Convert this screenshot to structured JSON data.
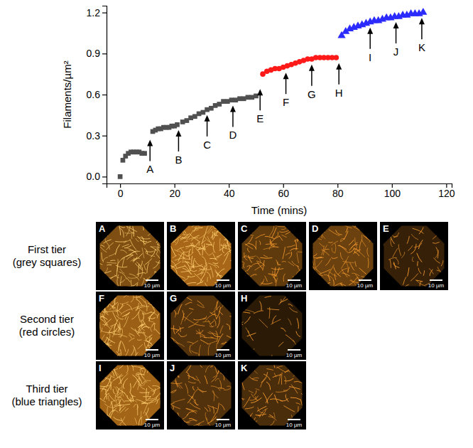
{
  "chart_data": {
    "type": "scatter",
    "xlabel": "Time (mins)",
    "ylabel": "Filaments/µm²",
    "xlim": [
      -5,
      122
    ],
    "ylim": [
      -0.05,
      1.25
    ],
    "xticks": [
      0,
      20,
      40,
      60,
      80,
      100,
      120
    ],
    "yticks": [
      {
        "value": 0,
        "label": "0.0"
      },
      0.3,
      0.6,
      0.9,
      1.2
    ],
    "grid": false,
    "series": [
      {
        "color": "#505050",
        "marker": "square",
        "x": [
          0,
          1,
          2,
          3,
          4,
          5,
          6,
          7,
          8,
          9,
          12,
          13,
          14,
          15,
          16,
          17,
          18,
          19,
          20,
          21,
          23,
          24.5,
          26,
          27.5,
          29,
          30.5,
          32,
          33.5,
          35,
          36.5,
          38,
          39.5,
          41,
          42.5,
          44,
          45.5,
          47,
          48.5,
          50
        ],
        "values": [
          0,
          0.12,
          0.15,
          0.17,
          0.18,
          0.18,
          0.18,
          0.18,
          0.17,
          0.17,
          0.33,
          0.34,
          0.35,
          0.35,
          0.36,
          0.36,
          0.36,
          0.37,
          0.37,
          0.38,
          0.4,
          0.41,
          0.43,
          0.44,
          0.46,
          0.47,
          0.49,
          0.5,
          0.52,
          0.53,
          0.55,
          0.55,
          0.56,
          0.56,
          0.57,
          0.57,
          0.58,
          0.58,
          0.59
        ]
      },
      {
        "color": "#ff1a1a",
        "marker": "circle",
        "x": [
          52.5,
          54,
          55.5,
          57,
          58.5,
          60,
          61.5,
          63,
          64.5,
          66,
          67.5,
          69,
          70.5,
          72,
          73.5,
          75,
          76.5,
          78,
          79.5
        ],
        "values": [
          0.75,
          0.77,
          0.78,
          0.79,
          0.79,
          0.8,
          0.81,
          0.82,
          0.83,
          0.84,
          0.85,
          0.86,
          0.86,
          0.87,
          0.87,
          0.87,
          0.87,
          0.87,
          0.87
        ]
      },
      {
        "color": "#2b2bff",
        "marker": "triangle",
        "x": [
          81.5,
          83,
          84.5,
          86,
          87.5,
          89,
          90.5,
          92,
          93.5,
          95,
          96.5,
          98,
          99.5,
          101,
          102.5,
          104,
          105.5,
          107,
          108.5,
          110,
          111.5
        ],
        "values": [
          1.03,
          1.06,
          1.08,
          1.09,
          1.1,
          1.11,
          1.12,
          1.13,
          1.14,
          1.14,
          1.15,
          1.16,
          1.16,
          1.17,
          1.17,
          1.18,
          1.18,
          1.19,
          1.19,
          1.19,
          1.2
        ]
      }
    ],
    "annotations": [
      {
        "text": "A",
        "x": 11,
        "y": 0.27
      },
      {
        "text": "B",
        "x": 21.5,
        "y": 0.34
      },
      {
        "text": "C",
        "x": 32,
        "y": 0.45
      },
      {
        "text": "D",
        "x": 41.5,
        "y": 0.52
      },
      {
        "text": "E",
        "x": 51.5,
        "y": 0.64
      },
      {
        "text": "F",
        "x": 61,
        "y": 0.76
      },
      {
        "text": "G",
        "x": 70.5,
        "y": 0.82
      },
      {
        "text": "H",
        "x": 80.5,
        "y": 0.83
      },
      {
        "text": "I",
        "x": 92,
        "y": 1.09
      },
      {
        "text": "J",
        "x": 101.5,
        "y": 1.13
      },
      {
        "text": "K",
        "x": 111,
        "y": 1.16
      }
    ]
  },
  "image_panels": {
    "rows": [
      {
        "title": "First tier (grey squares)",
        "panels": [
          {
            "label": "A",
            "scale_bar": "10 µm"
          },
          {
            "label": "B",
            "scale_bar": "10 µm"
          },
          {
            "label": "C",
            "scale_bar": "10 µm"
          },
          {
            "label": "D",
            "scale_bar": "10 µm"
          },
          {
            "label": "E",
            "scale_bar": "10 µm"
          }
        ]
      },
      {
        "title": "Second tier (red circles)",
        "panels": [
          {
            "label": "F",
            "scale_bar": "10 µm"
          },
          {
            "label": "G",
            "scale_bar": "10 µm"
          },
          {
            "label": "H",
            "scale_bar": "10 µm"
          }
        ]
      },
      {
        "title": "Third tier (blue triangles)",
        "panels": [
          {
            "label": "I",
            "scale_bar": "10 µm"
          },
          {
            "label": "J",
            "scale_bar": "10 µm"
          },
          {
            "label": "K",
            "scale_bar": "10 µm"
          }
        ]
      }
    ]
  }
}
